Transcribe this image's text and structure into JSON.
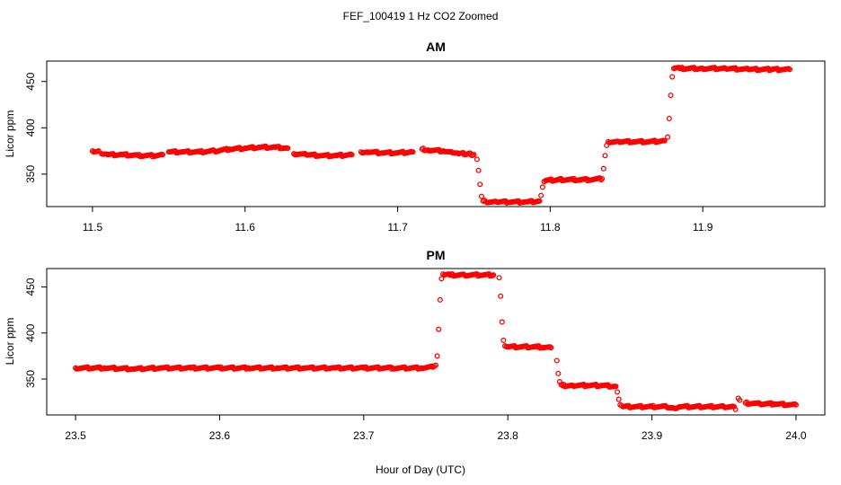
{
  "figure": {
    "title": "FEF_100419  1 Hz CO2 Zoomed",
    "xlabel": "Hour of Day (UTC)"
  },
  "chart_data": [
    {
      "type": "scatter",
      "title": "AM",
      "xlabel": "",
      "ylabel": "Licor ppm",
      "xlim": [
        11.47,
        11.98
      ],
      "ylim": [
        315,
        472
      ],
      "x_ticks": [
        11.5,
        11.6,
        11.7,
        11.8,
        11.9
      ],
      "x_tick_labels": [
        "11.5",
        "11.6",
        "11.7",
        "11.8",
        "11.9"
      ],
      "y_ticks": [
        350,
        400,
        450
      ],
      "y_tick_labels": [
        "350",
        "400",
        "450"
      ],
      "marker_color": "#ff0000",
      "series": [
        {
          "x": [
            11.5,
            11.504,
            11.506,
            11.51,
            11.52,
            11.53,
            11.54,
            11.546,
            11.55,
            11.56,
            11.57,
            11.58,
            11.59,
            11.6,
            11.61,
            11.62,
            11.628,
            11.632,
            11.64,
            11.65,
            11.66,
            11.67,
            11.676,
            11.68,
            11.69,
            11.7,
            11.71,
            11.716,
            11.72,
            11.73,
            11.736,
            11.74,
            11.746,
            11.75,
            11.752,
            11.753,
            11.754,
            11.755,
            11.756,
            11.758,
            11.765,
            11.775,
            11.785,
            11.793,
            11.794,
            11.795,
            11.796,
            11.797,
            11.805,
            11.815,
            11.825,
            11.834,
            11.835,
            11.836,
            11.837,
            11.838,
            11.845,
            11.855,
            11.865,
            11.875,
            11.877,
            11.878,
            11.879,
            11.88,
            11.881,
            11.885,
            11.9,
            11.915,
            11.93,
            11.945,
            11.957
          ],
          "y": [
            375,
            375,
            372,
            371,
            371,
            370,
            370,
            371,
            374,
            374,
            374,
            375,
            377,
            378,
            379,
            379,
            378,
            372,
            371,
            370,
            370,
            371,
            374,
            374,
            373,
            373,
            374,
            377,
            376,
            375,
            373,
            372,
            372,
            371,
            366,
            354,
            339,
            326,
            321,
            320,
            320,
            320,
            320,
            321,
            327,
            336,
            342,
            343,
            344,
            344,
            344,
            345,
            356,
            370,
            381,
            385,
            385,
            385,
            385,
            386,
            390,
            410,
            435,
            455,
            464,
            464,
            464,
            464,
            463,
            463,
            463
          ]
        }
      ]
    },
    {
      "type": "scatter",
      "title": "PM",
      "xlabel": "Hour of Day (UTC)",
      "ylabel": "Licor ppm",
      "xlim": [
        23.48,
        24.02
      ],
      "ylim": [
        311,
        470
      ],
      "x_ticks": [
        23.5,
        23.6,
        23.7,
        23.8,
        23.9,
        24.0
      ],
      "x_tick_labels": [
        "23.5",
        "23.6",
        "23.7",
        "23.8",
        "23.9",
        "24.0"
      ],
      "y_ticks": [
        350,
        400,
        450
      ],
      "y_tick_labels": [
        "350",
        "400",
        "450"
      ],
      "marker_color": "#ff0000",
      "series": [
        {
          "x": [
            23.5,
            23.52,
            23.54,
            23.56,
            23.58,
            23.6,
            23.62,
            23.64,
            23.66,
            23.68,
            23.7,
            23.72,
            23.74,
            23.748,
            23.75,
            23.751,
            23.752,
            23.753,
            23.754,
            23.755,
            23.756,
            23.76,
            23.77,
            23.78,
            23.79,
            23.794,
            23.795,
            23.796,
            23.797,
            23.798,
            23.8,
            23.81,
            23.82,
            23.83,
            23.834,
            23.835,
            23.836,
            23.837,
            23.838,
            23.845,
            23.855,
            23.865,
            23.875,
            23.876,
            23.877,
            23.878,
            23.879,
            23.88,
            23.89,
            23.9,
            23.91,
            23.916,
            23.92,
            23.93,
            23.94,
            23.95,
            23.957,
            23.958,
            23.96,
            23.961,
            23.965,
            23.975,
            23.985,
            23.995,
            24.0
          ],
          "y": [
            362,
            362,
            361,
            362,
            362,
            362,
            362,
            362,
            362,
            362,
            362,
            362,
            362,
            363,
            365,
            375,
            404,
            436,
            459,
            464,
            463,
            463,
            463,
            463,
            463,
            460,
            440,
            412,
            392,
            386,
            385,
            385,
            385,
            384,
            370,
            356,
            347,
            344,
            343,
            343,
            343,
            343,
            342,
            336,
            328,
            322,
            321,
            320,
            320,
            320,
            320,
            318,
            320,
            320,
            320,
            320,
            320,
            317,
            329,
            327,
            324,
            323,
            323,
            322,
            322
          ]
        }
      ]
    }
  ]
}
